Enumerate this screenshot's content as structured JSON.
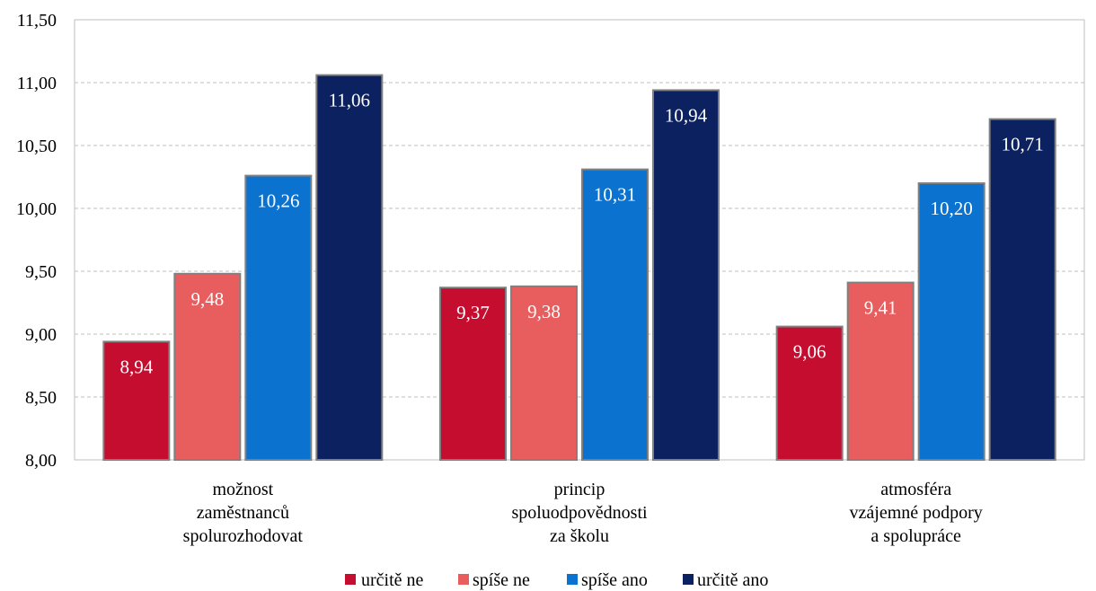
{
  "chart_data": {
    "type": "bar",
    "categories": [
      [
        "možnost",
        "zaměstnanců",
        "spolurozhodovat"
      ],
      [
        "princip",
        "spoluodpovědnosti",
        "za školu"
      ],
      [
        "atmosféra",
        "vzájemné podpory",
        "a spolupráce"
      ]
    ],
    "series": [
      {
        "name": "určitě ne",
        "color": "#c40d2f",
        "values": [
          8.94,
          9.37,
          9.06
        ],
        "labels": [
          "8,94",
          "9,37",
          "9,06"
        ]
      },
      {
        "name": "spíše ne",
        "color": "#e85d5d",
        "values": [
          9.48,
          9.38,
          9.41
        ],
        "labels": [
          "9,48",
          "9,38",
          "9,41"
        ]
      },
      {
        "name": "spíše ano",
        "color": "#0b73cf",
        "values": [
          10.26,
          10.31,
          10.2
        ],
        "labels": [
          "10,26",
          "10,31",
          "10,20"
        ]
      },
      {
        "name": "určitě ano",
        "color": "#0c2160",
        "values": [
          11.06,
          10.94,
          10.71
        ],
        "labels": [
          "11,06",
          "10,94",
          "10,71"
        ]
      }
    ],
    "ylim": [
      8.0,
      11.5
    ],
    "yticks": [
      8.0,
      8.5,
      9.0,
      9.5,
      10.0,
      10.5,
      11.0,
      11.5
    ],
    "ytick_labels": [
      "8,00",
      "8,50",
      "9,00",
      "9,50",
      "10,00",
      "10,50",
      "11,00",
      "11,50"
    ],
    "grid": true,
    "legend_position": "bottom",
    "title": "",
    "xlabel": "",
    "ylabel": ""
  }
}
